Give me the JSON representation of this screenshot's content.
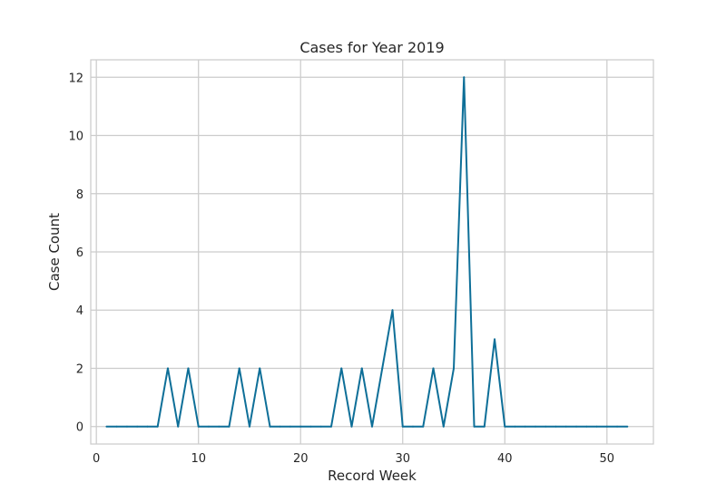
{
  "chart_data": {
    "type": "line",
    "title": "Cases for Year 2019",
    "xlabel": "Record Week",
    "ylabel": "Case Count",
    "xlim": [
      -0.55,
      54.55
    ],
    "ylim": [
      -0.6,
      12.6
    ],
    "xticks": [
      0,
      10,
      20,
      30,
      40,
      50
    ],
    "yticks": [
      0,
      2,
      4,
      6,
      8,
      10,
      12
    ],
    "grid": true,
    "legend": "none",
    "colors": {
      "line": "#0e6f98",
      "grid": "#cccccc",
      "frame": "#cccccc",
      "background": "#ffffff"
    },
    "series": [
      {
        "x": [
          1,
          2,
          3,
          4,
          5,
          6,
          7,
          8,
          9,
          10,
          11,
          12,
          13,
          14,
          15,
          16,
          17,
          18,
          19,
          20,
          21,
          22,
          23,
          24,
          25,
          26,
          27,
          28,
          29,
          30,
          31,
          32,
          33,
          34,
          35,
          36,
          37,
          38,
          39,
          40,
          41,
          42,
          43,
          44,
          45,
          46,
          47,
          48,
          49,
          50,
          51,
          52
        ],
        "y": [
          0,
          0,
          0,
          0,
          0,
          0,
          2,
          0,
          2,
          0,
          0,
          0,
          0,
          2,
          0,
          2,
          0,
          0,
          0,
          0,
          0,
          0,
          0,
          2,
          0,
          2,
          0,
          2,
          4,
          0,
          0,
          0,
          2,
          0,
          2,
          12,
          0,
          0,
          3,
          0,
          0,
          0,
          0,
          0,
          0,
          0,
          0,
          0,
          0,
          0,
          0,
          0
        ]
      }
    ]
  }
}
